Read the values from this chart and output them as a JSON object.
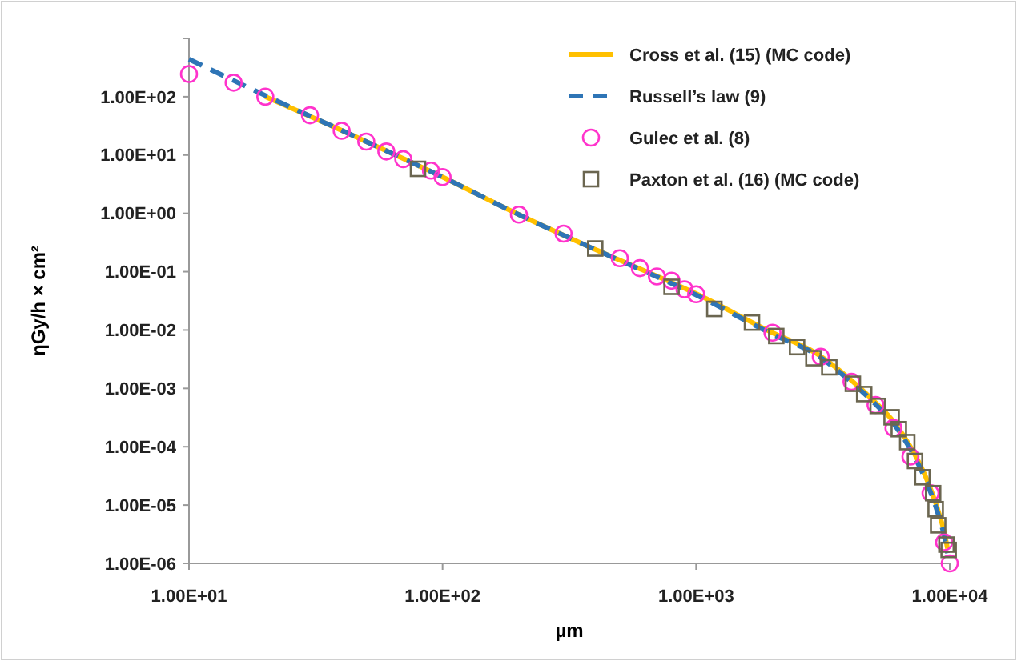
{
  "chart_data": {
    "type": "line",
    "xlabel": "µm",
    "ylabel": "ηGy/h × cm²",
    "log": "xy",
    "grid": false,
    "legend": "top right",
    "xlim": [
      10,
      10000
    ],
    "ylim": [
      1e-06,
      1000
    ],
    "xticks": [
      {
        "value": 10,
        "label": "1.00E+01"
      },
      {
        "value": 100,
        "label": "1.00E+02"
      },
      {
        "value": 1000,
        "label": "1.00E+03"
      },
      {
        "value": 10000,
        "label": "1.00E+04"
      }
    ],
    "yticks": [
      {
        "value": 1e-06,
        "label": "1.00E-06"
      },
      {
        "value": 1e-05,
        "label": "1.00E-05"
      },
      {
        "value": 0.0001,
        "label": "1.00E-04"
      },
      {
        "value": 0.001,
        "label": "1.00E-03"
      },
      {
        "value": 0.01,
        "label": "1.00E-02"
      },
      {
        "value": 0.1,
        "label": "1.00E-01"
      },
      {
        "value": 1,
        "label": "1.00E+00"
      },
      {
        "value": 10,
        "label": "1.00E+01"
      },
      {
        "value": 100,
        "label": "1.00E+02"
      },
      {
        "value": 1000,
        "label": null
      }
    ],
    "series": [
      {
        "name": "Cross et al. (15) (MC code)",
        "line_style": "solid",
        "color": "#ffc000",
        "x": [
          20,
          50,
          100,
          200,
          400,
          1000,
          2000,
          3000,
          4000,
          5000,
          6000,
          7000,
          8000,
          9000,
          9500,
          9800
        ],
        "values": [
          100,
          17,
          4.2,
          0.95,
          0.24,
          0.042,
          0.009,
          0.0039,
          0.0015,
          0.00062,
          0.00027,
          0.0001,
          3.2e-05,
          8e-06,
          3.5e-06,
          1.8e-06
        ]
      },
      {
        "name": "Russell’s law (9)",
        "line_style": "dashed",
        "color": "#2e75b6",
        "x": [
          10,
          20,
          50,
          100,
          200,
          400,
          1000,
          2000,
          3000,
          4000,
          5000,
          6000,
          7000,
          8000,
          9000,
          9500,
          9800
        ],
        "values": [
          440,
          105,
          17,
          4.2,
          0.95,
          0.24,
          0.04,
          0.0085,
          0.0037,
          0.0014,
          0.00058,
          0.00025,
          9e-05,
          2.8e-05,
          7e-06,
          3e-06,
          1.5e-06
        ]
      },
      {
        "name": "Gulec et al. (8)",
        "type": "scatter",
        "marker": "circle",
        "color": "#ff33cc",
        "x": [
          10,
          15,
          20,
          30,
          40,
          50,
          60,
          70,
          90,
          100,
          200,
          300,
          500,
          600,
          700,
          800,
          900,
          1000,
          2000,
          3100,
          4100,
          5100,
          6000,
          7000,
          8400,
          9500,
          10000
        ],
        "values": [
          245,
          174,
          100,
          48,
          26,
          17,
          11.5,
          8.5,
          5.4,
          4.2,
          0.95,
          0.45,
          0.17,
          0.115,
          0.083,
          0.07,
          0.05,
          0.041,
          0.009,
          0.0035,
          0.0013,
          0.00052,
          0.00021,
          6.8e-05,
          1.6e-05,
          2.3e-06,
          1e-06
        ]
      },
      {
        "name": "Paxton et al. (16) (MC code)",
        "type": "scatter",
        "marker": "square",
        "color": "#6b6650",
        "x": [
          80,
          400,
          800,
          1180,
          1660,
          2070,
          2500,
          2900,
          3350,
          4150,
          4600,
          5200,
          5900,
          6300,
          6800,
          7300,
          7800,
          8600,
          8800,
          9000,
          9700,
          9900
        ],
        "values": [
          5.8,
          0.25,
          0.055,
          0.023,
          0.0134,
          0.0079,
          0.0051,
          0.0033,
          0.0023,
          0.0012,
          0.0008,
          0.0005,
          0.00032,
          0.0002,
          0.00012,
          5.7e-05,
          3e-05,
          1.6e-05,
          8.5e-06,
          4.5e-06,
          2.1e-06,
          1.7e-06
        ]
      }
    ]
  }
}
